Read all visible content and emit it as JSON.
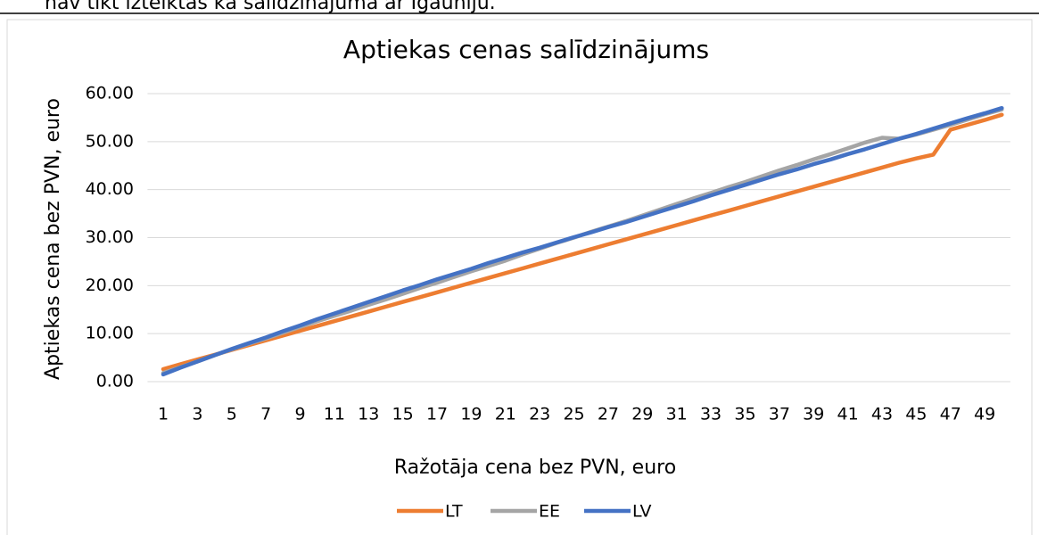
{
  "page": {
    "text_above": "nav tikt izteiktas kā salīdzinājumā ar Igauniju."
  },
  "chart_data": {
    "type": "line",
    "title": "Aptiekas cenas salīdzinājums",
    "x_label": "Ražotāja cena bez PVN, euro",
    "y_label": "Aptiekas cena bez PVN, euro",
    "categories": [
      1,
      null,
      3,
      null,
      5,
      null,
      7,
      null,
      9,
      null,
      11,
      null,
      13,
      null,
      15,
      null,
      17,
      null,
      19,
      null,
      21,
      null,
      23,
      null,
      25,
      null,
      27,
      null,
      29,
      null,
      31,
      null,
      33,
      null,
      35,
      null,
      37,
      null,
      39,
      null,
      41,
      null,
      43,
      null,
      45,
      null,
      47,
      null,
      49,
      null
    ],
    "series": [
      {
        "name": "LT",
        "color": "#ed7d31",
        "values": [
          2.6,
          3.6,
          4.6,
          5.6,
          6.6,
          7.6,
          8.6,
          9.6,
          10.6,
          11.6,
          12.6,
          13.6,
          14.6,
          15.6,
          16.6,
          17.6,
          18.6,
          19.6,
          20.6,
          21.6,
          22.6,
          23.6,
          24.6,
          25.6,
          26.6,
          27.6,
          28.6,
          29.6,
          30.6,
          31.6,
          32.6,
          33.6,
          34.6,
          35.6,
          36.6,
          37.6,
          38.6,
          39.6,
          40.6,
          41.6,
          42.6,
          43.6,
          44.6,
          45.6,
          46.5,
          47.3,
          52.5,
          53.5,
          54.5,
          55.6
        ]
      },
      {
        "name": "EE",
        "color": "#a5a5a5",
        "values": [
          1.8,
          3.0,
          4.2,
          5.5,
          6.7,
          7.9,
          9.0,
          10.2,
          11.4,
          12.6,
          13.7,
          14.8,
          16.0,
          17.1,
          18.3,
          19.5,
          20.6,
          21.8,
          23.0,
          24.1,
          25.2,
          26.5,
          27.7,
          28.9,
          30.0,
          31.2,
          32.3,
          33.4,
          34.6,
          35.8,
          37.0,
          38.2,
          39.3,
          40.5,
          41.6,
          42.8,
          44.0,
          45.1,
          46.3,
          47.4,
          48.6,
          49.8,
          50.8,
          50.6,
          51.5,
          52.5,
          53.5,
          54.6,
          55.7,
          56.7
        ]
      },
      {
        "name": "LV",
        "color": "#4472c4",
        "values": [
          1.5,
          2.9,
          4.2,
          5.5,
          6.8,
          8.0,
          9.2,
          10.5,
          11.7,
          13.0,
          14.2,
          15.4,
          16.6,
          17.8,
          19.0,
          20.1,
          21.3,
          22.4,
          23.5,
          24.7,
          25.8,
          26.9,
          27.9,
          29.0,
          30.1,
          31.1,
          32.2,
          33.2,
          34.3,
          35.4,
          36.5,
          37.6,
          38.8,
          39.9,
          41.0,
          42.1,
          43.2,
          44.2,
          45.3,
          46.3,
          47.4,
          48.4,
          49.5,
          50.6,
          51.6,
          52.7,
          53.8,
          54.9,
          55.9,
          57.0
        ]
      }
    ],
    "ylim": [
      0,
      60
    ],
    "yticks": [
      {
        "value": 0,
        "label": "0.00"
      },
      {
        "value": 10,
        "label": "10.00"
      },
      {
        "value": 20,
        "label": "20.00"
      },
      {
        "value": 30,
        "label": "30.00"
      },
      {
        "value": 40,
        "label": "40.00"
      },
      {
        "value": 50,
        "label": "50.00"
      },
      {
        "value": 60,
        "label": "60.00"
      }
    ],
    "grid": true,
    "legend": "bottom"
  }
}
